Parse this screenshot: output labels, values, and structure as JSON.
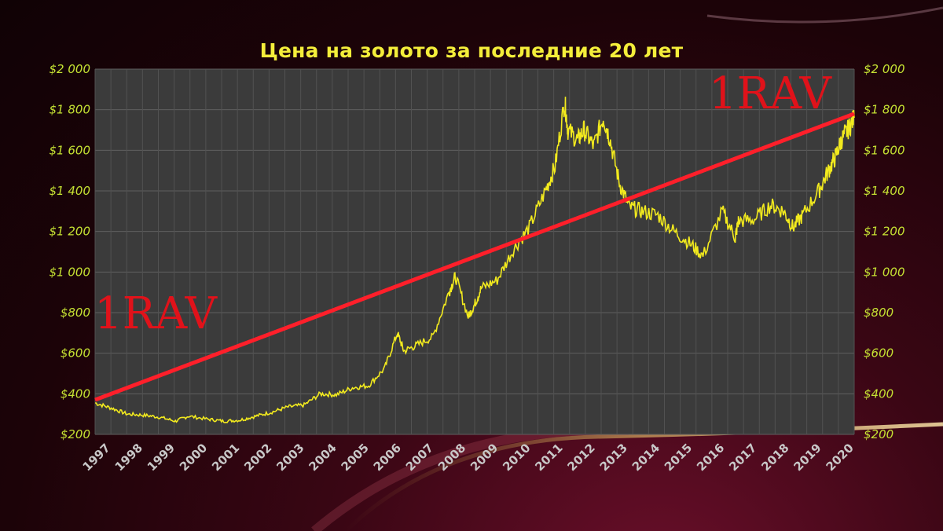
{
  "chart_data": {
    "type": "line",
    "title": "Цена на золото за последние 20 лет",
    "xlabel": "",
    "ylabel": "",
    "ylim": [
      200,
      2000
    ],
    "xlim": [
      1997,
      2020.6
    ],
    "y_ticks": [
      "$2 000",
      "$1 800",
      "$1 600",
      "$1 400",
      "$1 200",
      "$1 000",
      "$800",
      "$600",
      "$400",
      "$200"
    ],
    "y_tick_values": [
      2000,
      1800,
      1600,
      1400,
      1200,
      1000,
      800,
      600,
      400,
      200
    ],
    "x_ticks": [
      "1997",
      "1998",
      "1999",
      "2000",
      "2001",
      "2002",
      "2003",
      "2004",
      "2005",
      "2006",
      "2007",
      "2008",
      "2009",
      "2010",
      "2011",
      "2012",
      "2013",
      "2014",
      "2015",
      "2016",
      "2017",
      "2018",
      "2019",
      "2020"
    ],
    "grid": true,
    "series": [
      {
        "color": "#f2ea1e",
        "x": [
          1997.0,
          1997.5,
          1998.0,
          1998.5,
          1999.0,
          1999.5,
          1999.9,
          2000.5,
          2001.0,
          2001.5,
          2002.0,
          2002.5,
          2003.0,
          2003.5,
          2004.0,
          2004.5,
          2005.0,
          2005.5,
          2006.0,
          2006.4,
          2006.6,
          2007.0,
          2007.5,
          2008.0,
          2008.2,
          2008.6,
          2008.8,
          2009.0,
          2009.5,
          2010.0,
          2010.5,
          2011.0,
          2011.3,
          2011.6,
          2011.7,
          2012.0,
          2012.2,
          2012.5,
          2012.8,
          2013.0,
          2013.3,
          2013.6,
          2014.0,
          2014.5,
          2015.0,
          2015.5,
          2015.9,
          2016.5,
          2016.9,
          2017.0,
          2017.5,
          2018.0,
          2018.4,
          2018.7,
          2019.0,
          2019.5,
          2019.8,
          2020.0,
          2020.2,
          2020.4,
          2020.6
        ],
        "y": [
          355,
          330,
          300,
          295,
          285,
          265,
          290,
          275,
          265,
          270,
          290,
          310,
          335,
          345,
          400,
          395,
          430,
          440,
          525,
          700,
          610,
          640,
          680,
          900,
          980,
          780,
          840,
          920,
          960,
          1110,
          1220,
          1400,
          1520,
          1840,
          1700,
          1650,
          1700,
          1620,
          1760,
          1660,
          1440,
          1320,
          1300,
          1280,
          1200,
          1140,
          1080,
          1300,
          1170,
          1250,
          1260,
          1330,
          1300,
          1220,
          1280,
          1400,
          1500,
          1560,
          1650,
          1700,
          1760
        ]
      }
    ],
    "trendline": {
      "color": "#ff1f2a",
      "x": [
        1997.0,
        2020.6
      ],
      "y": [
        370,
        1780
      ]
    },
    "watermarks": [
      "1RAV",
      "1RAV"
    ]
  }
}
